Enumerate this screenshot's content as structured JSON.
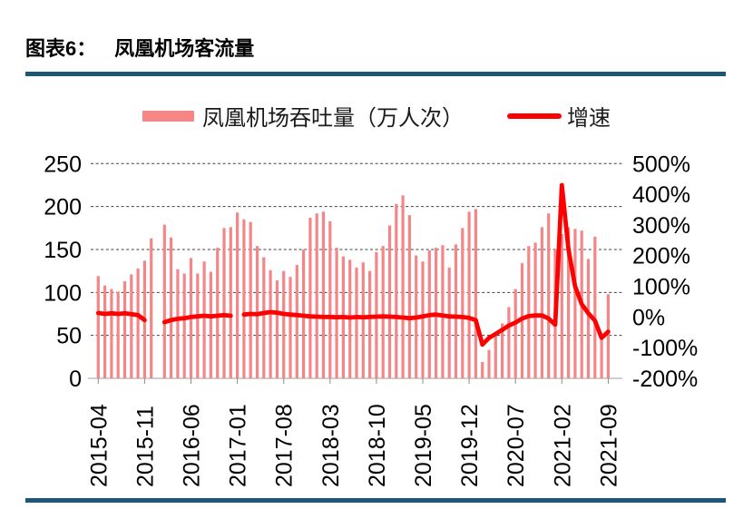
{
  "title": {
    "prefix": "图表6：",
    "text": "凤凰机场客流量"
  },
  "legend": {
    "bar_label": "凤凰机场吞吐量（万人次）",
    "line_label": "增速"
  },
  "colors": {
    "bar": "#F48688",
    "line": "#FF0000",
    "rule": "#1C5776",
    "grid": "#404040",
    "axis": "#BFBFBF",
    "tick": "#8C8C8C",
    "text": "#000000"
  },
  "chart_data": {
    "type": "bar+line",
    "title": "凤凰机场客流量",
    "legend_position": "top",
    "grid": "dashed-horizontal",
    "x": [
      "2015-04",
      "2015-05",
      "2015-06",
      "2015-07",
      "2015-08",
      "2015-09",
      "2015-10",
      "2015-11",
      "2015-12",
      "2016-01",
      "2016-02",
      "2016-03",
      "2016-04",
      "2016-05",
      "2016-06",
      "2016-07",
      "2016-08",
      "2016-09",
      "2016-10",
      "2016-11",
      "2016-12",
      "2017-01",
      "2017-02",
      "2017-03",
      "2017-04",
      "2017-05",
      "2017-06",
      "2017-07",
      "2017-08",
      "2017-09",
      "2017-10",
      "2017-11",
      "2017-12",
      "2018-01",
      "2018-02",
      "2018-03",
      "2018-04",
      "2018-05",
      "2018-06",
      "2018-07",
      "2018-08",
      "2018-09",
      "2018-10",
      "2018-11",
      "2018-12",
      "2019-01",
      "2019-02",
      "2019-03",
      "2019-04",
      "2019-05",
      "2019-06",
      "2019-07",
      "2019-08",
      "2019-09",
      "2019-10",
      "2019-11",
      "2019-12",
      "2020-01",
      "2020-02",
      "2020-03",
      "2020-04",
      "2020-05",
      "2020-06",
      "2020-07",
      "2020-08",
      "2020-09",
      "2020-10",
      "2020-11",
      "2020-12",
      "2021-01",
      "2021-02",
      "2021-03",
      "2021-04",
      "2021-05",
      "2021-06",
      "2021-07",
      "2021-08",
      "2021-09"
    ],
    "series": [
      {
        "name": "凤凰机场吞吐量（万人次）",
        "type": "bar",
        "axis": "left",
        "values": [
          119,
          108,
          104,
          101,
          113,
          121,
          128,
          137,
          163,
          null,
          179,
          164,
          127,
          122,
          140,
          122,
          136,
          124,
          152,
          175,
          176,
          193,
          185,
          182,
          154,
          141,
          126,
          114,
          125,
          118,
          132,
          150,
          187,
          192,
          194,
          183,
          152,
          142,
          138,
          129,
          135,
          125,
          147,
          154,
          178,
          203,
          213,
          190,
          143,
          136,
          149,
          152,
          155,
          129,
          156,
          175,
          194,
          197,
          19,
          33,
          53,
          64,
          83,
          104,
          134,
          154,
          158,
          176,
          192,
          150,
          168,
          176,
          174,
          172,
          139,
          165,
          45,
          98
        ]
      },
      {
        "name": "增速",
        "type": "line",
        "axis": "right",
        "unit": "%",
        "values": [
          13,
          10,
          12,
          10,
          12,
          9,
          6,
          -10,
          null,
          null,
          -17,
          -10,
          -6,
          -4,
          0,
          2,
          4,
          2,
          4,
          6,
          4,
          null,
          8,
          10,
          9,
          13,
          16,
          14,
          10,
          8,
          6,
          4,
          2,
          1,
          0,
          0,
          -1,
          0,
          -2,
          0,
          -1,
          0,
          1,
          2,
          1,
          0,
          -2,
          -4,
          -2,
          2,
          6,
          8,
          5,
          2,
          1,
          0,
          -3,
          -10,
          -90,
          -68,
          -55,
          -42,
          -28,
          -18,
          -5,
          3,
          5,
          5,
          -5,
          -25,
          430,
          220,
          100,
          42,
          12,
          -12,
          -68,
          -48
        ]
      }
    ],
    "left_axis": {
      "range": [
        0,
        250
      ],
      "ticks": [
        "250",
        "200",
        "150",
        "100",
        "50",
        "0"
      ],
      "tick_values": [
        250,
        200,
        150,
        100,
        50,
        0
      ]
    },
    "right_axis": {
      "range": [
        -200,
        500
      ],
      "ticks": [
        "500%",
        "400%",
        "300%",
        "200%",
        "100%",
        "0%",
        "-100%",
        "-200%"
      ]
    },
    "x_tick_labels": [
      "2015-04",
      "2015-11",
      "2016-06",
      "2017-01",
      "2017-08",
      "2018-03",
      "2018-10",
      "2019-05",
      "2019-12",
      "2020-07",
      "2021-02",
      "2021-09"
    ]
  }
}
